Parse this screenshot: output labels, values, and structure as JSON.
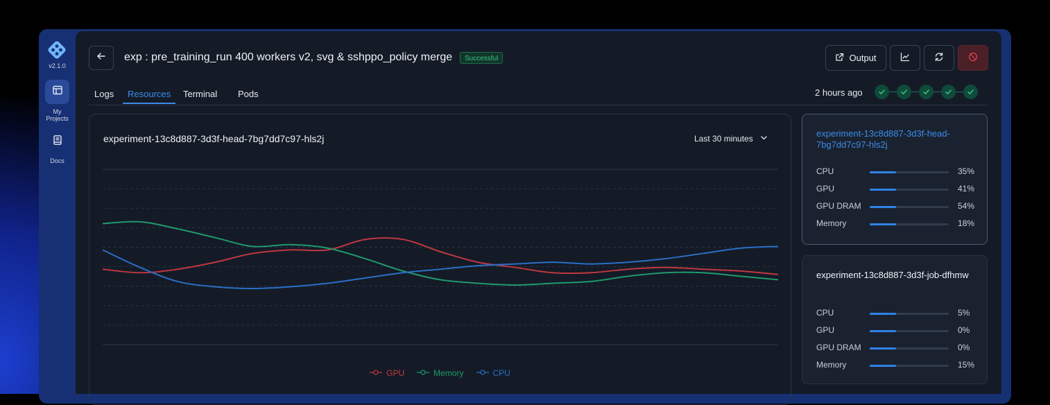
{
  "app": {
    "version": "v2.1.0"
  },
  "sidebar": {
    "items": [
      {
        "label_line1": "My",
        "label_line2": "Projects",
        "icon": "layout-icon",
        "active": true
      },
      {
        "label": "Docs",
        "icon": "book-icon",
        "active": false
      }
    ]
  },
  "header": {
    "title": "exp : pre_training_run 400 workers v2, svg & sshppo_policy merge",
    "status": "Successful",
    "output_label": "Output"
  },
  "tabs": [
    {
      "label": "Logs",
      "active": false
    },
    {
      "label": "Resources",
      "active": true
    },
    {
      "label": "Terminal",
      "active": false
    },
    {
      "label": "Pods",
      "active": false
    }
  ],
  "run_time": "2 hours ago",
  "steps_completed": 5,
  "colors": {
    "gpu": "#c0383f",
    "memory": "#1f9a6b",
    "cpu": "#2a6fc7",
    "accent": "#3b8be8",
    "success": "#38c486"
  },
  "chart_card": {
    "title": "experiment-13c8d887-3d3f-head-7bg7dd7c97-hls2j",
    "range": "Last 30 minutes"
  },
  "chart_data": {
    "type": "line",
    "x": [
      0,
      1,
      2,
      3,
      4,
      5,
      6,
      7,
      8,
      9,
      10,
      11,
      12,
      13,
      14,
      15,
      16,
      17,
      18
    ],
    "series": [
      {
        "name": "GPU",
        "values": [
          43,
          41,
          43,
          47,
          52,
          54,
          54,
          60,
          60,
          53,
          47,
          44,
          41,
          41,
          43,
          44,
          43,
          42,
          40
        ]
      },
      {
        "name": "Memory",
        "values": [
          69,
          70,
          66,
          61,
          56,
          57,
          55,
          49,
          42,
          37,
          35,
          34,
          35,
          36,
          39,
          41,
          41,
          39,
          37
        ]
      },
      {
        "name": "CPU",
        "values": [
          54,
          44,
          36,
          33,
          32,
          33,
          35,
          38,
          41,
          43,
          45,
          46,
          47,
          46,
          47,
          49,
          52,
          55,
          56
        ]
      }
    ],
    "ylim": [
      0,
      100
    ],
    "grid": true,
    "legend": "bottom-center"
  },
  "resource_cards": [
    {
      "name": "experiment-13c8d887-3d3f-head-7bg7dd7c97-hls2j",
      "selected": true,
      "metrics": [
        {
          "name": "CPU",
          "value": "35%",
          "level": 0.33
        },
        {
          "name": "GPU",
          "value": "41%",
          "level": 0.33
        },
        {
          "name": "GPU DRAM",
          "value": "54%",
          "level": 0.33
        },
        {
          "name": "Memory",
          "value": "18%",
          "level": 0.33
        }
      ]
    },
    {
      "name": "experiment-13c8d887-3d3f-job-dfhmw",
      "selected": false,
      "metrics": [
        {
          "name": "CPU",
          "value": "5%",
          "level": 0.33
        },
        {
          "name": "GPU",
          "value": "0%",
          "level": 0.33
        },
        {
          "name": "GPU DRAM",
          "value": "0%",
          "level": 0.33
        },
        {
          "name": "Memory",
          "value": "15%",
          "level": 0.33
        }
      ]
    }
  ]
}
